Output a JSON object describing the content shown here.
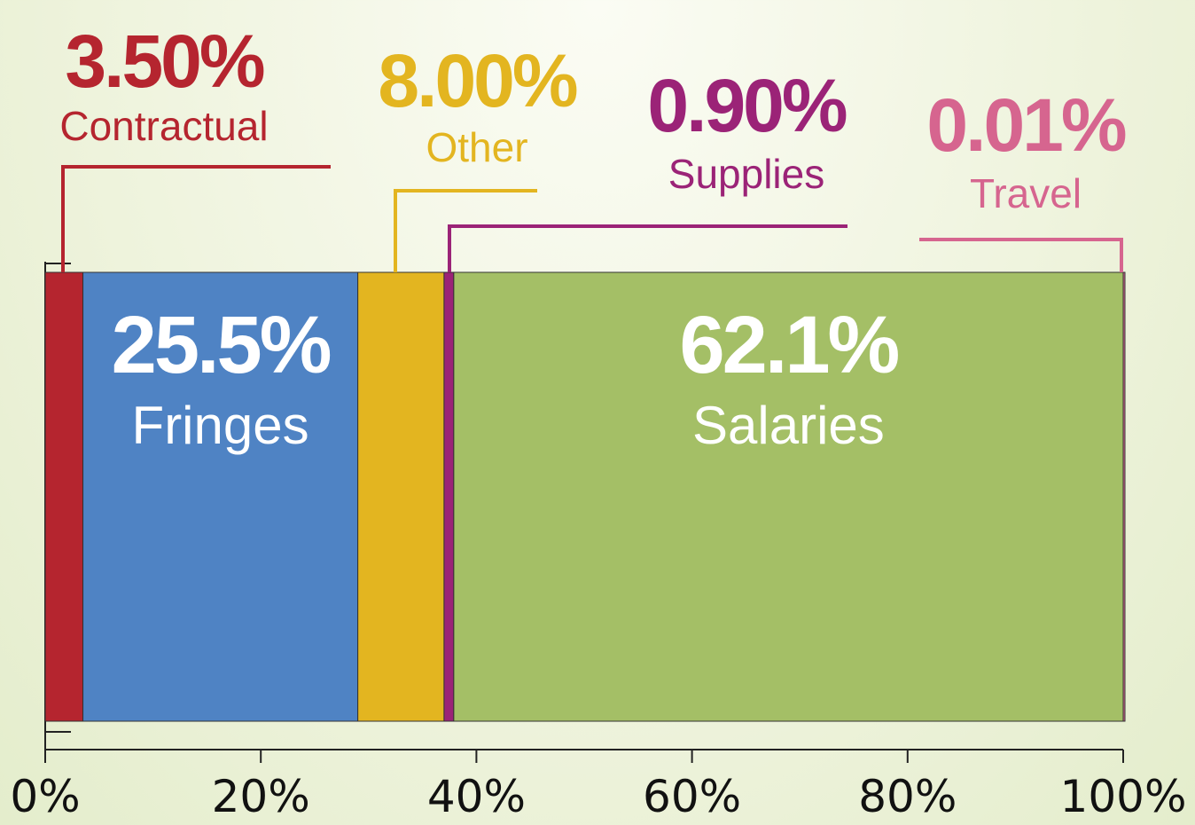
{
  "chart_data": {
    "type": "stacked_bar",
    "series": [
      {
        "name": "Contractual",
        "color": "#b5252f",
        "values": [
          3.5
        ],
        "value_labels": [
          "3.50%"
        ]
      },
      {
        "name": "Fringes",
        "color": "#4f83c4",
        "values": [
          25.5
        ],
        "value_labels": [
          "25.5%"
        ]
      },
      {
        "name": "Other",
        "color": "#e3b520",
        "values": [
          8.0
        ],
        "value_labels": [
          "8.00%"
        ]
      },
      {
        "name": "Supplies",
        "color": "#9b2377",
        "values": [
          0.9
        ],
        "value_labels": [
          "0.90%"
        ]
      },
      {
        "name": "Salaries",
        "color": "#a4bf66",
        "values": [
          62.1
        ],
        "value_labels": [
          "62.1%"
        ]
      },
      {
        "name": "Travel",
        "color": "#d6658f",
        "values": [
          0.01
        ],
        "value_labels": [
          "0.01%"
        ]
      }
    ],
    "xlim": [
      0,
      100
    ],
    "xticks": [
      {
        "value": 0,
        "label": "0%"
      },
      {
        "value": 20,
        "label": "20%"
      },
      {
        "value": 40,
        "label": "40%"
      },
      {
        "value": 60,
        "label": "60%"
      },
      {
        "value": 80,
        "label": "80%"
      },
      {
        "value": 100,
        "label": "100%"
      }
    ]
  }
}
